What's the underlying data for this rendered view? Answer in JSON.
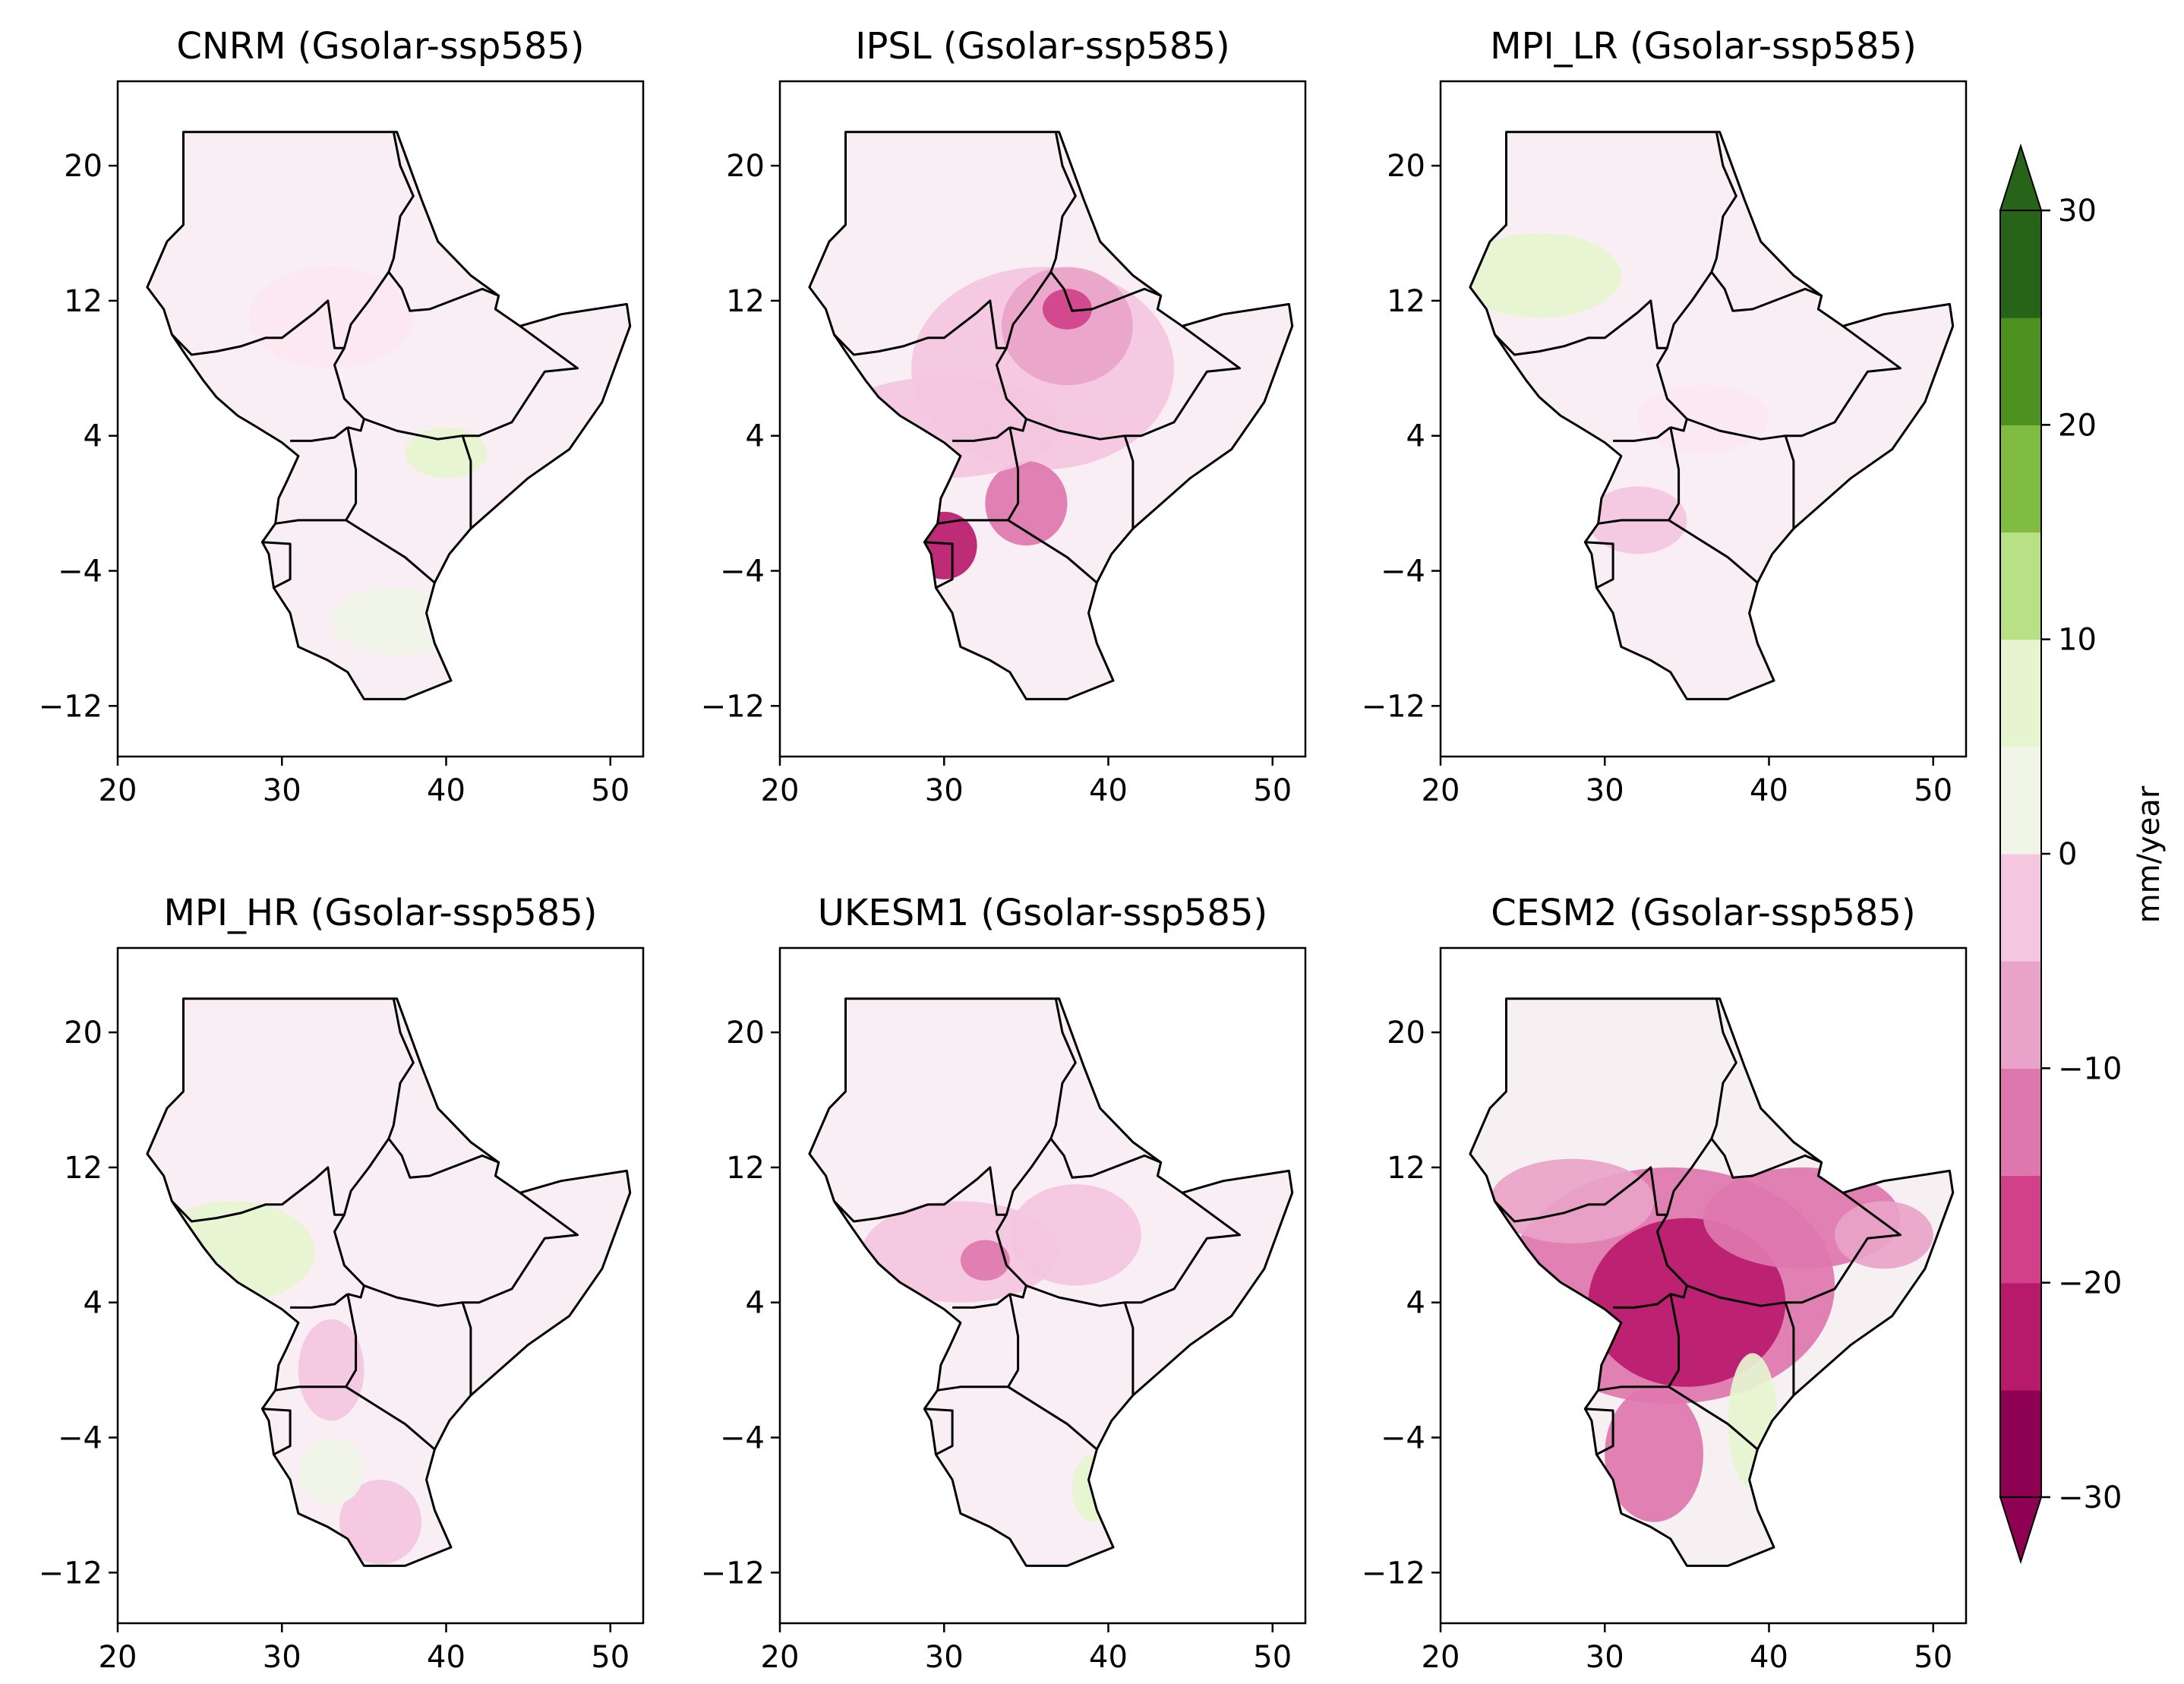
{
  "panels": [
    {
      "title": "CNRM (Gsolar-ssp585)",
      "hotspots": [
        {
          "lon": 33,
          "lat": 11,
          "rx": 5,
          "ry": 3,
          "level": -5
        },
        {
          "lon": 40,
          "lat": 3,
          "rx": 2.5,
          "ry": 1.5,
          "level": 6
        },
        {
          "lon": 37,
          "lat": -7,
          "rx": 4,
          "ry": 2,
          "level": 2
        }
      ]
    },
    {
      "title": "IPSL (Gsolar-ssp585)",
      "hotspots": [
        {
          "lon": 36,
          "lat": 8,
          "rx": 8,
          "ry": 6,
          "level": -8
        },
        {
          "lon": 37.5,
          "lat": 10.5,
          "rx": 4,
          "ry": 3.5,
          "level": -13
        },
        {
          "lon": 37.5,
          "lat": 11.5,
          "rx": 1.5,
          "ry": 1.2,
          "level": -22
        },
        {
          "lon": 30,
          "lat": -2.5,
          "rx": 2,
          "ry": 2,
          "level": -28
        },
        {
          "lon": 35,
          "lat": 0,
          "rx": 2.5,
          "ry": 2.5,
          "level": -18
        },
        {
          "lon": 30,
          "lat": 4.5,
          "rx": 7,
          "ry": 3,
          "level": -10
        }
      ]
    },
    {
      "title": "MPI_LR (Gsolar-ssp585)",
      "hotspots": [
        {
          "lon": 26,
          "lat": 13.5,
          "rx": 5,
          "ry": 2.5,
          "level": 7
        },
        {
          "lon": 32,
          "lat": -1,
          "rx": 3,
          "ry": 2,
          "level": -10
        },
        {
          "lon": 36,
          "lat": 5,
          "rx": 4,
          "ry": 2,
          "level": -5
        }
      ]
    },
    {
      "title": "MPI_HR (Gsolar-ssp585)",
      "hotspots": [
        {
          "lon": 27,
          "lat": 7,
          "rx": 5,
          "ry": 3,
          "level": 6
        },
        {
          "lon": 33,
          "lat": 0,
          "rx": 2,
          "ry": 3,
          "level": -8
        },
        {
          "lon": 36,
          "lat": -9,
          "rx": 2.5,
          "ry": 2.5,
          "level": -8
        },
        {
          "lon": 33,
          "lat": -6,
          "rx": 2,
          "ry": 2,
          "level": 4
        }
      ]
    },
    {
      "title": "UKESM1 (Gsolar-ssp585)",
      "hotspots": [
        {
          "lon": 31,
          "lat": 7,
          "rx": 6,
          "ry": 3,
          "level": -10
        },
        {
          "lon": 32.5,
          "lat": 6.5,
          "rx": 1.5,
          "ry": 1.2,
          "level": -16
        },
        {
          "lon": 38,
          "lat": 8,
          "rx": 4,
          "ry": 3,
          "level": -6
        },
        {
          "lon": 39,
          "lat": -7,
          "rx": 1.2,
          "ry": 2,
          "level": 6
        }
      ]
    },
    {
      "title": "CESM2 (Gsolar-ssp585)",
      "hotspots": [
        {
          "lon": 34,
          "lat": 5,
          "rx": 10,
          "ry": 7,
          "level": -20
        },
        {
          "lon": 35,
          "lat": 4,
          "rx": 6,
          "ry": 5,
          "level": -29
        },
        {
          "lon": 42,
          "lat": 9,
          "rx": 6,
          "ry": 3,
          "level": -20
        },
        {
          "lon": 47,
          "lat": 8,
          "rx": 3,
          "ry": 2,
          "level": -14
        },
        {
          "lon": 28,
          "lat": 10,
          "rx": 5,
          "ry": 2.5,
          "level": -12
        },
        {
          "lon": 33,
          "lat": -5,
          "rx": 3,
          "ry": 4,
          "level": -18
        },
        {
          "lon": 39,
          "lat": -3,
          "rx": 1.5,
          "ry": 4,
          "level": 5
        }
      ]
    }
  ],
  "map_settings": {
    "lon_range": [
      20,
      52
    ],
    "lat_range": [
      -15,
      25
    ],
    "x_ticks": [
      "20",
      "30",
      "40",
      "50"
    ],
    "y_ticks": [
      "20",
      "12",
      "4",
      "−4",
      "−12"
    ]
  },
  "colorbar": {
    "label": "mm/year",
    "tick_labels": [
      "30",
      "20",
      "10",
      "0",
      "−10",
      "−20",
      "−30"
    ],
    "levels": [
      -30,
      -25,
      -20,
      -15,
      -10,
      -5,
      0,
      5,
      10,
      15,
      20,
      25,
      30
    ],
    "colors": [
      "#8e0152",
      "#b81a6b",
      "#d0418a",
      "#de77ae",
      "#e9a3c9",
      "#f4c6e0",
      "#fbe7f1",
      "#f0f5e8",
      "#e6f5d0",
      "#b8e186",
      "#7fbc41",
      "#4d9221",
      "#276419"
    ],
    "extend": "both"
  }
}
